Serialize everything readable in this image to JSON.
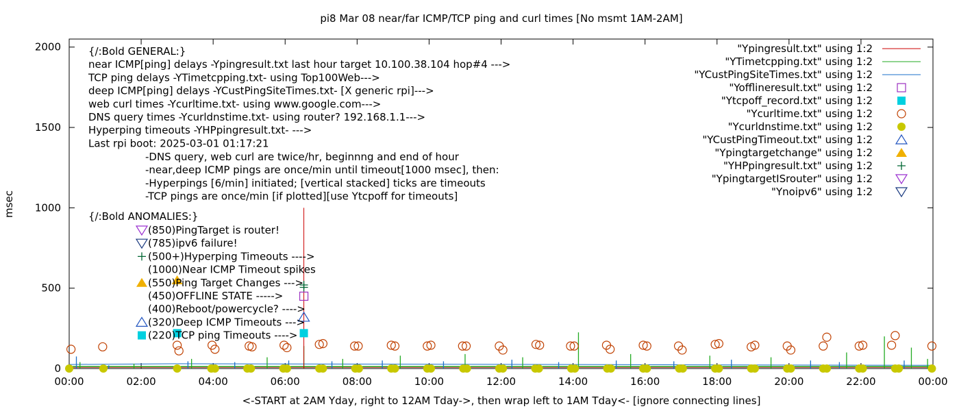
{
  "chart_data": {
    "type": "line",
    "title": "pi8 Mar 08  near/far ICMP/TCP ping and curl times [No msmt 1AM-2AM]",
    "xlabel": "<-START at 2AM Yday, right to 12AM Tday->, then wrap left to 1AM Tday<- [ignore connecting lines]",
    "ylabel": "msec",
    "xlim": [
      0,
      24
    ],
    "ylim": [
      0,
      2050
    ],
    "xticks": [
      "00:00",
      "02:00",
      "04:00",
      "06:00",
      "08:00",
      "10:00",
      "12:00",
      "14:00",
      "16:00",
      "18:00",
      "20:00",
      "22:00",
      "00:00"
    ],
    "yticks": [
      "0",
      "500",
      "1000",
      "1500",
      "2000"
    ],
    "ytick_values": [
      0,
      500,
      1000,
      1500,
      2000
    ],
    "legend_position": "top-right",
    "legend": [
      {
        "label": "\"Ypingresult.txt\" using 1:2",
        "marker": "line",
        "color": "#cc0000"
      },
      {
        "label": "\"YTimetcpping.txt\" using 1:2",
        "marker": "line",
        "color": "#22aa22"
      },
      {
        "label": "\"YCustPingSiteTimes.txt\" using 1:2",
        "marker": "line",
        "color": "#1a6fc8"
      },
      {
        "label": "\"Yofflineresult.txt\" using 1:2",
        "marker": "open-square",
        "color": "#9b30c0"
      },
      {
        "label": "\"Ytcpoff_record.txt\" using 1:2",
        "marker": "filled-square",
        "color": "#00d0e0"
      },
      {
        "label": "\"Ycurltime.txt\" using 1:2",
        "marker": "open-circle",
        "color": "#c04000"
      },
      {
        "label": "\"Ycurldnstime.txt\" using 1:2",
        "marker": "filled-circle",
        "color": "#c8c800"
      },
      {
        "label": "\"YCustPingTimeout.txt\" using 1:2",
        "marker": "open-triangle-up",
        "color": "#2255c0"
      },
      {
        "label": "\"Ypingtargetchange\" using 1:2",
        "marker": "filled-triangle-up",
        "color": "#f0b000"
      },
      {
        "label": "\"YHPpingresult.txt\" using 1:2",
        "marker": "plus",
        "color": "#006633"
      },
      {
        "label": "\"YpingtargetISrouter\" using 1:2",
        "marker": "open-triangle-down",
        "color": "#9b30d0"
      },
      {
        "label": "\"Ynoipv6\" using 1:2",
        "marker": "open-triangle-down",
        "color": "#1a3a80"
      }
    ],
    "annotations": {
      "general_lines": [
        "{/:Bold GENERAL:}",
        "near ICMP[ping] delays -Ypingresult.txt last hour target 10.100.38.104 hop#4 --->",
        "TCP ping delays -YTimetcpping.txt- using Top100Web--->",
        "deep ICMP[ping] delays -YCustPingSiteTimes.txt- [X generic rpi]--->",
        "web curl times -Ycurltime.txt- using www.google.com--->",
        "DNS query times -Ycurldnstime.txt- using router? 192.168.1.1--->",
        "Hyperping timeouts -YHPpingresult.txt- --->",
        "Last rpi boot: 2025-03-01 01:17:21"
      ],
      "notes": [
        "-DNS query, web curl are twice/hr, beginnng and end of hour",
        "-near,deep ICMP pings are once/min until timeout[1000 msec], then:",
        "  -Hyperpings [6/min] initiated; [vertical stacked] ticks are timeouts",
        "-TCP pings are once/min [if plotted][use Ytcpoff for timeouts]"
      ],
      "anomalies_title": "{/:Bold ANOMALIES:}",
      "anomalies": [
        {
          "text": "(850)PingTarget is router!",
          "marker": "open-triangle-down",
          "color": "#9b30d0"
        },
        {
          "text": "(785)ipv6 failure!",
          "marker": "open-triangle-down",
          "color": "#1a3a80"
        },
        {
          "text": "(500+)Hyperping Timeouts ---->",
          "marker": "plus",
          "color": "#006633"
        },
        {
          "text": "(1000)Near ICMP Timeout spikes",
          "marker": "none",
          "color": "#000000"
        },
        {
          "text": "(550)Ping Target Changes --->",
          "marker": "filled-triangle-up",
          "color": "#f0b000"
        },
        {
          "text": "(450)OFFLINE STATE ----->",
          "marker": "none",
          "color": "#000000"
        },
        {
          "text": "(400)Reboot/powercycle? ---->",
          "marker": "none",
          "color": "#000000"
        },
        {
          "text": "(320)Deep ICMP Timeouts --->",
          "marker": "open-triangle-up",
          "color": "#2255c0"
        },
        {
          "text": "(220)TCP ping Timeouts ---->",
          "marker": "filled-square",
          "color": "#00d0e0"
        }
      ]
    },
    "points": {
      "offline": [
        {
          "x": 6.52,
          "y": 450
        }
      ],
      "tcp_timeouts": [
        {
          "x": 3.0,
          "y": 220
        },
        {
          "x": 6.52,
          "y": 220
        }
      ],
      "ping_target_changes": [
        {
          "x": 3.0,
          "y": 550
        }
      ],
      "deep_timeouts": [
        {
          "x": 6.52,
          "y": 320
        }
      ],
      "hyperping_timeouts": [
        {
          "x": 6.52,
          "y": 520
        },
        {
          "x": 6.52,
          "y": 505
        }
      ],
      "near_icmp_spike": {
        "x": 6.52,
        "y": 1000
      },
      "curl_times": [
        {
          "x": 0.05,
          "y": 120
        },
        {
          "x": 0.93,
          "y": 135
        },
        {
          "x": 3.0,
          "y": 145
        },
        {
          "x": 3.05,
          "y": 110
        },
        {
          "x": 3.97,
          "y": 145
        },
        {
          "x": 4.05,
          "y": 120
        },
        {
          "x": 5.0,
          "y": 140
        },
        {
          "x": 5.08,
          "y": 135
        },
        {
          "x": 5.97,
          "y": 145
        },
        {
          "x": 6.05,
          "y": 130
        },
        {
          "x": 6.95,
          "y": 150
        },
        {
          "x": 7.05,
          "y": 155
        },
        {
          "x": 7.93,
          "y": 140
        },
        {
          "x": 8.03,
          "y": 140
        },
        {
          "x": 8.95,
          "y": 145
        },
        {
          "x": 9.05,
          "y": 140
        },
        {
          "x": 9.95,
          "y": 140
        },
        {
          "x": 10.05,
          "y": 145
        },
        {
          "x": 10.93,
          "y": 140
        },
        {
          "x": 11.03,
          "y": 140
        },
        {
          "x": 11.95,
          "y": 140
        },
        {
          "x": 12.05,
          "y": 115
        },
        {
          "x": 12.97,
          "y": 150
        },
        {
          "x": 13.07,
          "y": 145
        },
        {
          "x": 13.93,
          "y": 140
        },
        {
          "x": 14.03,
          "y": 140
        },
        {
          "x": 14.93,
          "y": 145
        },
        {
          "x": 15.03,
          "y": 120
        },
        {
          "x": 15.95,
          "y": 145
        },
        {
          "x": 16.05,
          "y": 140
        },
        {
          "x": 16.93,
          "y": 140
        },
        {
          "x": 17.03,
          "y": 115
        },
        {
          "x": 17.95,
          "y": 150
        },
        {
          "x": 18.05,
          "y": 155
        },
        {
          "x": 18.95,
          "y": 135
        },
        {
          "x": 19.05,
          "y": 145
        },
        {
          "x": 19.95,
          "y": 140
        },
        {
          "x": 20.05,
          "y": 115
        },
        {
          "x": 20.95,
          "y": 140
        },
        {
          "x": 21.05,
          "y": 195
        },
        {
          "x": 21.95,
          "y": 140
        },
        {
          "x": 22.05,
          "y": 145
        },
        {
          "x": 22.85,
          "y": 145
        },
        {
          "x": 22.95,
          "y": 205
        },
        {
          "x": 23.97,
          "y": 140
        }
      ],
      "dns_times": [
        {
          "x": 0.0,
          "y": 0
        },
        {
          "x": 0.95,
          "y": 0
        },
        {
          "x": 3.0,
          "y": 0
        },
        {
          "x": 3.95,
          "y": 0
        },
        {
          "x": 4.05,
          "y": 0
        },
        {
          "x": 4.95,
          "y": 0
        },
        {
          "x": 5.05,
          "y": 0
        },
        {
          "x": 5.95,
          "y": 0
        },
        {
          "x": 6.05,
          "y": 0
        },
        {
          "x": 6.95,
          "y": 0
        },
        {
          "x": 7.05,
          "y": 0
        },
        {
          "x": 7.95,
          "y": 0
        },
        {
          "x": 8.05,
          "y": 0
        },
        {
          "x": 8.95,
          "y": 0
        },
        {
          "x": 9.05,
          "y": 0
        },
        {
          "x": 9.95,
          "y": 0
        },
        {
          "x": 10.05,
          "y": 0
        },
        {
          "x": 10.95,
          "y": 0
        },
        {
          "x": 11.05,
          "y": 0
        },
        {
          "x": 11.95,
          "y": 0
        },
        {
          "x": 12.05,
          "y": 0
        },
        {
          "x": 12.95,
          "y": 0
        },
        {
          "x": 13.05,
          "y": 0
        },
        {
          "x": 13.95,
          "y": 0
        },
        {
          "x": 14.05,
          "y": 0
        },
        {
          "x": 14.95,
          "y": 0
        },
        {
          "x": 15.05,
          "y": 0
        },
        {
          "x": 15.95,
          "y": 0
        },
        {
          "x": 16.05,
          "y": 0
        },
        {
          "x": 16.95,
          "y": 0
        },
        {
          "x": 17.05,
          "y": 0
        },
        {
          "x": 17.95,
          "y": 0
        },
        {
          "x": 18.05,
          "y": 0
        },
        {
          "x": 18.95,
          "y": 0
        },
        {
          "x": 19.05,
          "y": 0
        },
        {
          "x": 19.95,
          "y": 0
        },
        {
          "x": 20.05,
          "y": 0
        },
        {
          "x": 20.95,
          "y": 0
        },
        {
          "x": 21.05,
          "y": 0
        },
        {
          "x": 21.95,
          "y": 0
        },
        {
          "x": 22.05,
          "y": 0
        },
        {
          "x": 22.95,
          "y": 0
        },
        {
          "x": 23.05,
          "y": 0
        },
        {
          "x": 23.97,
          "y": 0
        }
      ],
      "tcp_ping_spikes": [
        {
          "x": 0.3,
          "y": 40
        },
        {
          "x": 1.8,
          "y": 30
        },
        {
          "x": 3.4,
          "y": 60
        },
        {
          "x": 5.5,
          "y": 70
        },
        {
          "x": 6.52,
          "y": 140
        },
        {
          "x": 7.6,
          "y": 60
        },
        {
          "x": 9.2,
          "y": 80
        },
        {
          "x": 11.0,
          "y": 90
        },
        {
          "x": 12.6,
          "y": 70
        },
        {
          "x": 14.15,
          "y": 225
        },
        {
          "x": 15.6,
          "y": 90
        },
        {
          "x": 17.8,
          "y": 80
        },
        {
          "x": 19.5,
          "y": 70
        },
        {
          "x": 21.6,
          "y": 100
        },
        {
          "x": 22.65,
          "y": 200
        },
        {
          "x": 23.4,
          "y": 130
        },
        {
          "x": 23.85,
          "y": 60
        }
      ],
      "custping_spikes": [
        {
          "x": 0.2,
          "y": 75
        },
        {
          "x": 1.1,
          "y": 20
        },
        {
          "x": 3.3,
          "y": 45
        },
        {
          "x": 4.6,
          "y": 40
        },
        {
          "x": 6.1,
          "y": 50
        },
        {
          "x": 7.3,
          "y": 45
        },
        {
          "x": 8.7,
          "y": 50
        },
        {
          "x": 10.4,
          "y": 45
        },
        {
          "x": 12.3,
          "y": 55
        },
        {
          "x": 13.6,
          "y": 40
        },
        {
          "x": 15.2,
          "y": 50
        },
        {
          "x": 16.8,
          "y": 45
        },
        {
          "x": 18.4,
          "y": 55
        },
        {
          "x": 20.6,
          "y": 50
        },
        {
          "x": 21.4,
          "y": 40
        },
        {
          "x": 23.2,
          "y": 50
        }
      ]
    }
  }
}
